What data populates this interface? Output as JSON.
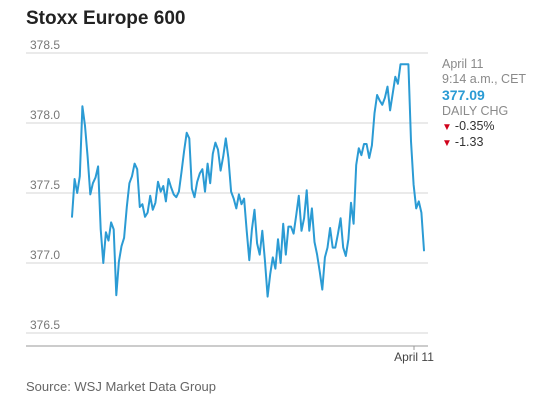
{
  "header": {
    "title": "Stoxx Europe 600"
  },
  "side_panel": {
    "date": "April 11",
    "time": "9:14 a.m., CET",
    "value": "377.09",
    "daily_chg_label": "DAILY CHG",
    "pct_change": "-0.35%",
    "abs_change": "-1.33",
    "down_icon": "down-triangle-icon"
  },
  "footer": {
    "source": "Source: WSJ Market Data Group"
  },
  "colors": {
    "line": "#2b9bd4",
    "value": "#2b9bd4",
    "down": "#d0021b",
    "grid": "#d6d6d6"
  },
  "chart_data": {
    "type": "line",
    "title": "Stoxx Europe 600",
    "xlabel": "",
    "ylabel": "",
    "ylim": [
      376.5,
      378.5
    ],
    "yticks": [
      376.5,
      377.0,
      377.5,
      378.0,
      378.5
    ],
    "ytick_labels": [
      "376.5",
      "377.0",
      "377.5",
      "378.0",
      "378.5"
    ],
    "xtick_labels": [
      "April 11"
    ],
    "grid": true,
    "series": [
      {
        "values": [
          377.33,
          377.6,
          377.5,
          377.62,
          378.12,
          377.98,
          377.76,
          377.49,
          377.57,
          377.61,
          377.69,
          377.24,
          377.0,
          377.22,
          377.16,
          377.29,
          377.24,
          376.77,
          377.01,
          377.12,
          377.18,
          377.4,
          377.57,
          377.62,
          377.71,
          377.67,
          377.4,
          377.42,
          377.33,
          377.36,
          377.48,
          377.38,
          377.43,
          377.58,
          377.51,
          377.55,
          377.44,
          377.6,
          377.54,
          377.49,
          377.47,
          377.51,
          377.65,
          377.8,
          377.93,
          377.89,
          377.53,
          377.47,
          377.58,
          377.64,
          377.67,
          377.51,
          377.71,
          377.57,
          377.78,
          377.86,
          377.81,
          377.66,
          377.76,
          377.89,
          377.75,
          377.51,
          377.46,
          377.39,
          377.49,
          377.42,
          377.46,
          377.23,
          377.02,
          377.24,
          377.38,
          377.14,
          377.06,
          377.23,
          377.02,
          376.76,
          376.92,
          377.04,
          376.96,
          377.17,
          377.0,
          377.28,
          377.06,
          377.26,
          377.26,
          377.21,
          377.34,
          377.48,
          377.23,
          377.32,
          377.52,
          377.23,
          377.39,
          377.15,
          377.06,
          376.94,
          376.81,
          377.04,
          377.11,
          377.25,
          377.11,
          377.11,
          377.21,
          377.32,
          377.11,
          377.05,
          377.17,
          377.43,
          377.28,
          377.7,
          377.82,
          377.77,
          377.85,
          377.85,
          377.75,
          377.84,
          378.07,
          378.2,
          378.16,
          378.13,
          378.18,
          378.26,
          378.09,
          378.21,
          378.33,
          378.28,
          378.42,
          378.42,
          378.42,
          378.42,
          377.87,
          377.56,
          377.39,
          377.44,
          377.36,
          377.09
        ]
      }
    ]
  }
}
